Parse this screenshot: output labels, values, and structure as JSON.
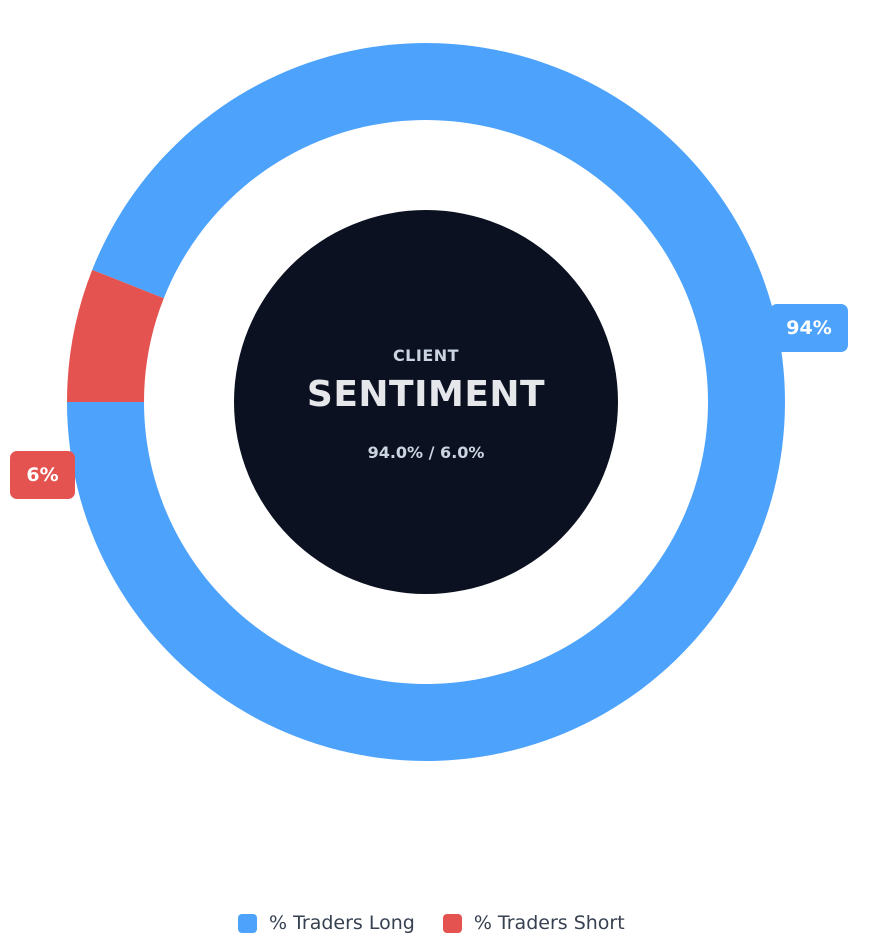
{
  "chart_data": {
    "type": "pie",
    "subtype": "donut",
    "series": [
      {
        "name": "% Traders Long",
        "value": 94.0,
        "color": "#4da3fc"
      },
      {
        "name": "% Traders Short",
        "value": 6.0,
        "color": "#e4534f"
      }
    ],
    "labels": [
      "94%",
      "6%"
    ],
    "center": {
      "kicker": "CLIENT",
      "title": "SENTIMENT",
      "ratio": "94.0% / 6.0%"
    },
    "legend": {
      "placement": "bottom-center",
      "entries": [
        "% Traders Long",
        "% Traders Short"
      ]
    }
  },
  "colors": {
    "center_disc": "#0b1120",
    "legend_text": "#374151",
    "label_text": "#ffffff"
  }
}
